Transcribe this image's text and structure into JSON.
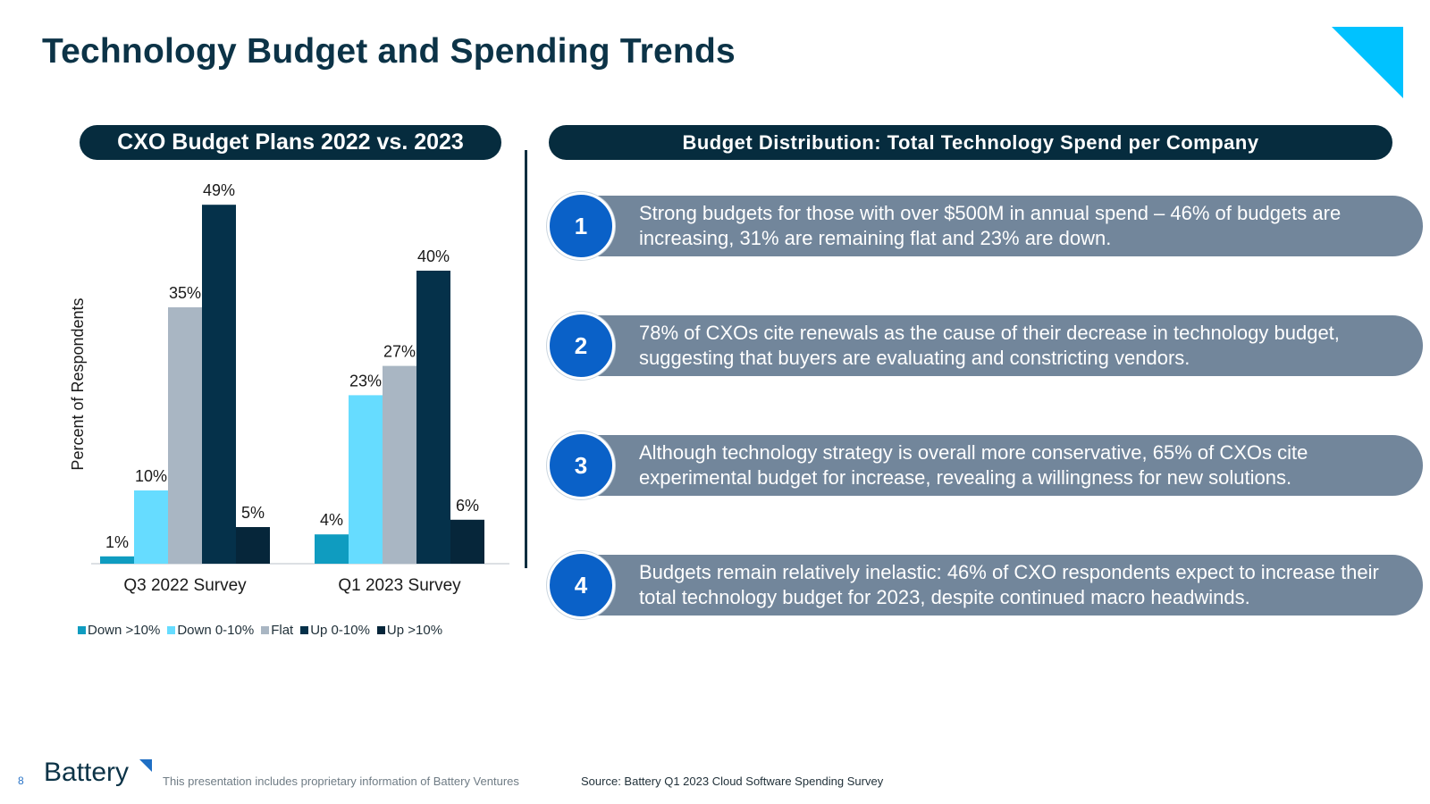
{
  "title": "Technology Budget and Spending Trends",
  "left_header": "CXO Budget Plans 2022 vs. 2023",
  "right_header": "Budget Distribution: Total Technology Spend per Company",
  "colors": {
    "navy": "#062c3e",
    "accent_blue": "#0a61c8",
    "corner_cyan": "#00c2ff",
    "bar_gray": "#72869b"
  },
  "chart_data": {
    "type": "bar",
    "ylabel": "Percent of Respondents",
    "categories": [
      "Q3 2022 Survey",
      "Q1 2023 Survey"
    ],
    "ylim": [
      0,
      55
    ],
    "legend_position": "bottom",
    "series": [
      {
        "name": "Down >10%",
        "color": "#0f9cc0",
        "values": [
          1,
          4
        ]
      },
      {
        "name": "Down 0-10%",
        "color": "#66dcff",
        "values": [
          10,
          23
        ]
      },
      {
        "name": "Flat",
        "color": "#a9b6c3",
        "values": [
          35,
          27
        ]
      },
      {
        "name": "Up 0-10%",
        "color": "#05314a",
        "values": [
          49,
          40
        ]
      },
      {
        "name": "Up >10%",
        "color": "#06263a",
        "values": [
          5,
          6
        ]
      }
    ],
    "data_label_suffix": "%"
  },
  "points": [
    {
      "number": "1",
      "text": "Strong budgets for those with over $500M in annual spend – 46% of budgets are increasing, 31% are remaining flat and 23% are down."
    },
    {
      "number": "2",
      "text": "78% of CXOs cite renewals as the cause of their decrease in technology budget, suggesting that buyers are evaluating and constricting vendors."
    },
    {
      "number": "3",
      "text": "Although technology strategy is overall more conservative, 65% of CXOs cite experimental budget for increase, revealing a willingness for new solutions."
    },
    {
      "number": "4",
      "text": "Budgets remain relatively inelastic: 46% of CXO respondents expect to increase their total technology budget for 2023, despite continued macro headwinds."
    }
  ],
  "footer": {
    "page_number": "8",
    "logo_text": "Battery",
    "disclaimer": "This presentation includes proprietary information of Battery Ventures",
    "source": "Source: Battery Q1 2023 Cloud Software Spending Survey"
  }
}
